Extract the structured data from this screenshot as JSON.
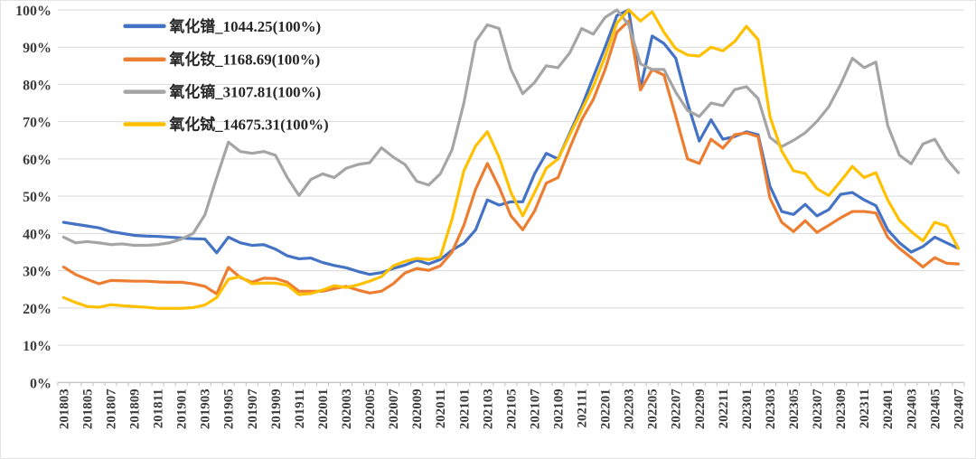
{
  "chart_data": {
    "type": "line",
    "title": "",
    "xlabel": "",
    "ylabel": "",
    "ylim": [
      0,
      100
    ],
    "grid": true,
    "legend_position": "top-left",
    "y_ticks": [
      "0%",
      "10%",
      "20%",
      "30%",
      "40%",
      "50%",
      "60%",
      "70%",
      "80%",
      "90%",
      "100%"
    ],
    "x_label_every": 2,
    "x": [
      "201803",
      "201804",
      "201805",
      "201806",
      "201807",
      "201808",
      "201809",
      "201810",
      "201811",
      "201812",
      "201901",
      "201902",
      "201903",
      "201904",
      "201905",
      "201906",
      "201907",
      "201908",
      "201909",
      "201910",
      "201911",
      "201912",
      "202001",
      "202002",
      "202003",
      "202004",
      "202005",
      "202006",
      "202007",
      "202008",
      "202009",
      "202010",
      "202011",
      "202012",
      "202101",
      "202102",
      "202103",
      "202104",
      "202105",
      "202106",
      "202107",
      "202108",
      "202109",
      "202110",
      "202111",
      "202112",
      "202201",
      "202202",
      "202203",
      "202204",
      "202205",
      "202206",
      "202207",
      "202208",
      "202209",
      "202210",
      "202211",
      "202212",
      "202301",
      "202302",
      "202303",
      "202304",
      "202305",
      "202306",
      "202307",
      "202308",
      "202309",
      "202310",
      "202311",
      "202312",
      "202401",
      "202402",
      "202403",
      "202404",
      "202405",
      "202406",
      "202407"
    ],
    "series": [
      {
        "name": "氧化镨_1044.25(100%)",
        "key": "pr-oxide",
        "color": "#4472C4",
        "values": [
          43,
          42.5,
          42,
          41.5,
          40.5,
          40,
          39.5,
          39.3,
          39.2,
          39,
          38.8,
          38.6,
          38.5,
          34.8,
          39,
          37.5,
          36.8,
          37,
          35.8,
          34,
          33.2,
          33.4,
          32.2,
          31.4,
          30.8,
          29.8,
          29,
          29.5,
          30.6,
          31.5,
          32.8,
          31.8,
          33,
          35.5,
          37.4,
          41,
          49,
          47.6,
          48.5,
          48.5,
          56,
          61.5,
          60,
          67,
          74,
          82,
          90,
          98.5,
          100,
          79,
          93,
          91,
          87,
          75,
          64.8,
          70.5,
          65.3,
          66,
          67.3,
          66.5,
          52.7,
          45.9,
          45.1,
          47.8,
          44.7,
          46.4,
          50.5,
          51,
          49,
          47.5,
          41,
          37.5,
          35,
          36.5,
          39,
          37.5,
          36
        ]
      },
      {
        "name": "氧化钕_1168.69(100%)",
        "key": "nd-oxide",
        "color": "#ED7D31",
        "values": [
          31,
          29,
          27.7,
          26.5,
          27.4,
          27.3,
          27.2,
          27.2,
          27,
          26.9,
          26.9,
          26.5,
          25.8,
          23.8,
          30.9,
          28.2,
          26.9,
          28,
          27.9,
          26.9,
          24.5,
          24.5,
          24.5,
          25.2,
          25.8,
          24.8,
          24,
          24.5,
          26.5,
          29.4,
          30.6,
          30.1,
          31.3,
          35,
          42.2,
          51.9,
          58.8,
          52.4,
          44.7,
          41,
          46,
          53.5,
          55,
          63,
          70.5,
          76,
          84,
          94,
          97,
          78.5,
          84,
          82.5,
          71.4,
          60,
          58.8,
          65.3,
          62.9,
          66.5,
          67,
          66,
          49.5,
          43,
          40.5,
          43.4,
          40.3,
          42.2,
          44.2,
          45.9,
          45.9,
          45.5,
          39,
          36,
          33.5,
          31,
          33.5,
          32,
          31.8
        ]
      },
      {
        "name": "氧化镝_3107.81(100%)",
        "key": "dy-oxide",
        "color": "#A5A5A5",
        "values": [
          39,
          37.5,
          37.8,
          37.5,
          37,
          37.2,
          36.8,
          36.8,
          37,
          37.5,
          38.5,
          40,
          45,
          55,
          64.5,
          62,
          61.5,
          62,
          61,
          55,
          50.2,
          54.5,
          56,
          55,
          57.5,
          58.5,
          59,
          63,
          60.5,
          58.5,
          54,
          53,
          56,
          62.5,
          75,
          91.5,
          96,
          95,
          84,
          77.5,
          80.5,
          85,
          84.5,
          88.5,
          95,
          93.5,
          98,
          100,
          96,
          85.5,
          84,
          84,
          77.9,
          73,
          71.4,
          75,
          74.3,
          78.6,
          79.4,
          76.2,
          65.8,
          63.3,
          65,
          67,
          70.1,
          74,
          80,
          87,
          84.5,
          86,
          69,
          61,
          58.7,
          64,
          65.3,
          60,
          56.3
        ]
      },
      {
        "name": "氧化铽_14675.31(100%)",
        "key": "tb-oxide",
        "color": "#FFC000",
        "values": [
          22.8,
          21.5,
          20.4,
          20.2,
          20.9,
          20.6,
          20.4,
          20.2,
          19.9,
          19.9,
          19.9,
          20.1,
          20.8,
          22.8,
          27.7,
          28.4,
          26.5,
          26.7,
          26.7,
          26.1,
          23.6,
          23.9,
          24.8,
          26,
          25.5,
          26.2,
          27.2,
          28.4,
          31.3,
          32.5,
          33.3,
          33,
          33.7,
          43.9,
          56.8,
          63.5,
          67.3,
          60.4,
          51,
          44.7,
          51,
          57.5,
          60,
          66.5,
          73,
          79.5,
          87.5,
          96.5,
          100,
          97,
          99.5,
          94,
          89.6,
          87.9,
          87.6,
          90,
          89,
          91.5,
          95.6,
          92,
          71.4,
          62.1,
          56.8,
          56.1,
          52,
          50.2,
          54,
          58,
          55,
          56.3,
          49,
          43.5,
          40.5,
          38,
          43,
          42,
          36
        ]
      }
    ],
    "colors": {
      "grid": "#D9D9D9",
      "axis_line": "#BFBFBF",
      "tick_label": "#3b3b3b",
      "background": "#FFFFFF"
    }
  }
}
